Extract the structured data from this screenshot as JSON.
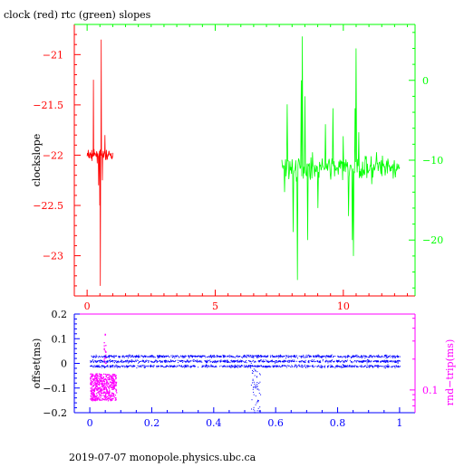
{
  "title": "clock (red) rtc (green) slopes",
  "footer": "2019-07-07  monopole.physics.ubc.ca",
  "colors": {
    "red": "#ff0000",
    "green": "#00ff00",
    "blue": "#0000ff",
    "magenta": "#ff00ff",
    "axis": "#000000"
  },
  "chart_data": [
    {
      "type": "line",
      "title": "clock (red) rtc (green) slopes",
      "ylabel": "clockslope",
      "xlim": [
        -0.5,
        12.8
      ],
      "ylim_left": [
        -23.4,
        -20.7
      ],
      "ylim_right": [
        -27,
        7
      ],
      "x_ticks": [
        0,
        5,
        10
      ],
      "x_tick_labels": [
        "0",
        "5",
        "10"
      ],
      "y_ticks_left": [
        -23,
        -22.5,
        -22,
        -21.5,
        -21
      ],
      "y_tick_labels_left": [
        "−23",
        "−22.5",
        "−22",
        "−21.5",
        "−21"
      ],
      "y_ticks_right": [
        -20,
        -10,
        0
      ],
      "y_tick_labels_right": [
        "−20",
        "−10",
        "0"
      ],
      "series": [
        {
          "color": "red",
          "axis": "left",
          "x_range": [
            0,
            1.0
          ],
          "n": 90,
          "base": -22.0,
          "noise": 0.06,
          "spikes": [
            [
              0.25,
              -21.25
            ],
            [
              0.45,
              -22.3
            ],
            [
              0.5,
              -22.5
            ],
            [
              0.52,
              -23.3
            ],
            [
              0.55,
              -20.85
            ],
            [
              0.6,
              -22.25
            ],
            [
              0.7,
              -21.8
            ]
          ]
        },
        {
          "color": "green",
          "axis": "right",
          "x_range": [
            7.6,
            12.2
          ],
          "n": 220,
          "base": -11.0,
          "noise": 1.8,
          "spikes": [
            [
              7.7,
              -14.0
            ],
            [
              7.8,
              -3.0
            ],
            [
              8.05,
              -19.0
            ],
            [
              8.2,
              -25.0
            ],
            [
              8.35,
              0.0
            ],
            [
              8.4,
              5.5
            ],
            [
              8.5,
              -2.0
            ],
            [
              8.6,
              -20.0
            ],
            [
              8.8,
              -9.0
            ],
            [
              9.0,
              -16.0
            ],
            [
              9.3,
              -5.5
            ],
            [
              9.6,
              -3.5
            ],
            [
              10.0,
              -7.0
            ],
            [
              10.2,
              -17.0
            ],
            [
              10.35,
              -20.0
            ],
            [
              10.4,
              -22.0
            ],
            [
              10.45,
              -3.5
            ],
            [
              10.5,
              4.0
            ],
            [
              10.6,
              -6.5
            ],
            [
              10.9,
              -9.5
            ],
            [
              11.1,
              -13.0
            ],
            [
              11.3,
              -9.0
            ],
            [
              11.5,
              -12.0
            ],
            [
              11.9,
              -11.0
            ],
            [
              12.15,
              -10.5
            ]
          ]
        }
      ]
    },
    {
      "type": "scatter",
      "ylabel": "offset(ms)",
      "ylabel_right": "rnd−trip(ms)",
      "xlim": [
        -0.05,
        1.05
      ],
      "ylim": [
        -0.2,
        0.2
      ],
      "x_ticks": [
        0,
        0.2,
        0.4,
        0.6,
        0.8,
        1
      ],
      "x_tick_labels": [
        "0",
        "0.2",
        "0.4",
        "0.6",
        "0.8",
        "1"
      ],
      "y_ticks": [
        -0.2,
        -0.1,
        0,
        0.1,
        0.2
      ],
      "y_tick_labels": [
        "−0.2",
        "−0.1",
        "0",
        "0.1",
        "0.2"
      ],
      "y_ticks_right": [
        0.1
      ],
      "y_tick_labels_right": [
        "0.1"
      ],
      "series": [
        {
          "color": "blue",
          "x_range": [
            0,
            1
          ],
          "n": 2200,
          "bands": [
            0.01,
            0.03,
            -0.01
          ],
          "noise": 0.006,
          "dip": {
            "x_range": [
              0.52,
              0.55
            ],
            "y_range": [
              -0.2,
              -0.02
            ],
            "n": 60
          }
        },
        {
          "color": "magenta",
          "x_range": [
            0,
            0.085
          ],
          "n": 500,
          "y_range": [
            -0.15,
            -0.04
          ],
          "spikes": [
            [
              0.045,
              0.12
            ],
            [
              0.048,
              0.15
            ],
            [
              0.05,
              0.08
            ]
          ]
        }
      ]
    }
  ]
}
